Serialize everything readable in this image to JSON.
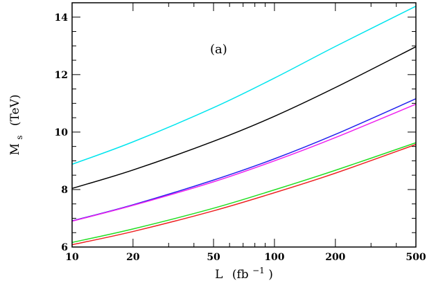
{
  "chart_data": {
    "type": "line",
    "annotation": "(a)",
    "xlabel": {
      "main": "L",
      "paren_open": "(fb",
      "sup": "−1",
      "paren_close": ")"
    },
    "ylabel": {
      "main": "M",
      "sub": "s",
      "unit": "(TeV)"
    },
    "xscale": "log",
    "xlim": [
      10,
      500
    ],
    "ylim": [
      6,
      14.5
    ],
    "xticks_labeled": [
      10,
      20,
      50,
      100,
      200,
      500
    ],
    "xtick_labels": [
      "10",
      "20",
      "50",
      "100",
      "200",
      "500"
    ],
    "yticks_labeled": [
      6,
      8,
      10,
      12,
      14
    ],
    "ytick_labels": [
      "6",
      "8",
      "10",
      "12",
      "14"
    ],
    "grid": false,
    "series": [
      {
        "color": "#00e5ee",
        "x": [
          10,
          20,
          50,
          100,
          200,
          500
        ],
        "y": [
          8.88,
          9.66,
          10.85,
          11.88,
          12.98,
          14.38
        ]
      },
      {
        "color": "#000000",
        "x": [
          10,
          20,
          50,
          100,
          200,
          500
        ],
        "y": [
          8.04,
          8.68,
          9.68,
          10.55,
          11.55,
          12.97
        ]
      },
      {
        "color": "#2222ee",
        "x": [
          10,
          20,
          50,
          100,
          200,
          500
        ],
        "y": [
          6.91,
          7.47,
          8.33,
          9.07,
          9.92,
          11.16
        ]
      },
      {
        "color": "#ee22ee",
        "x": [
          10,
          20,
          50,
          100,
          200,
          500
        ],
        "y": [
          6.9,
          7.45,
          8.27,
          9.0,
          9.81,
          10.97
        ]
      },
      {
        "color": "#22dd22",
        "x": [
          10,
          20,
          50,
          100,
          200,
          500
        ],
        "y": [
          6.16,
          6.63,
          7.35,
          7.99,
          8.67,
          9.63
        ]
      },
      {
        "color": "#ee2222",
        "x": [
          10,
          20,
          50,
          100,
          200,
          500
        ],
        "y": [
          6.08,
          6.54,
          7.26,
          7.89,
          8.57,
          9.57
        ]
      }
    ]
  }
}
